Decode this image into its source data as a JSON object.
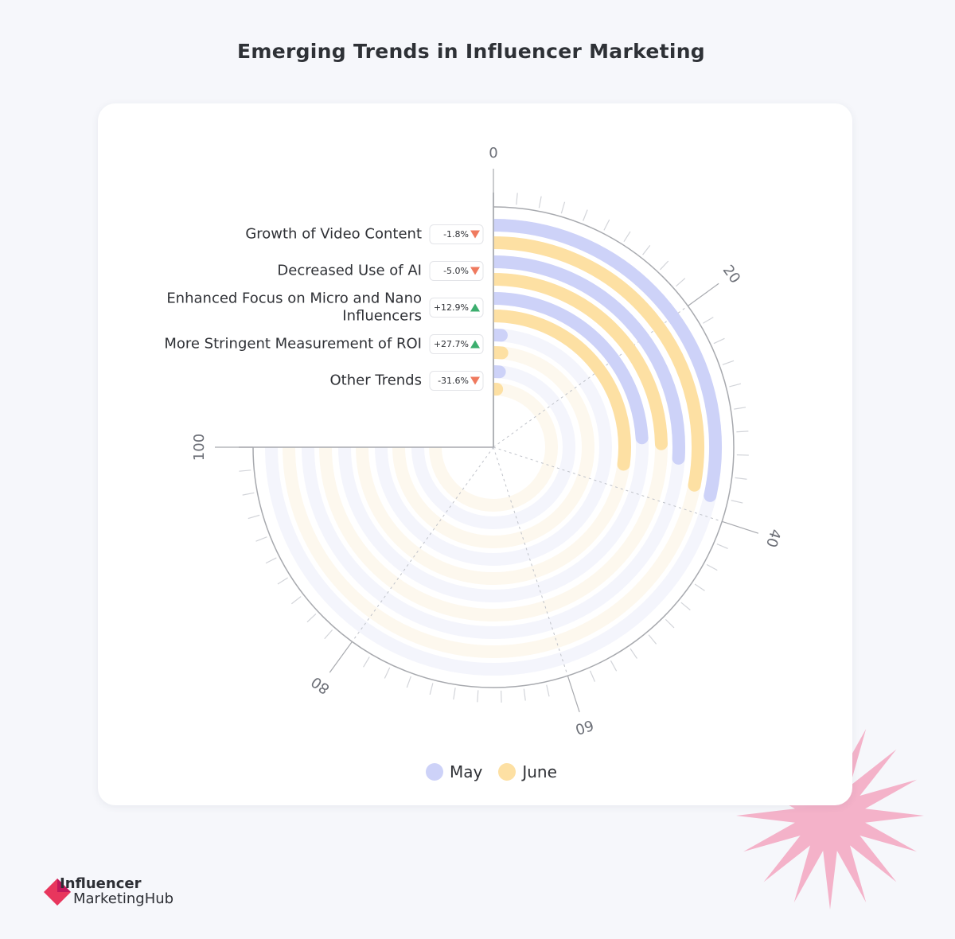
{
  "title": "Emerging Trends in Influencer Marketing",
  "colors": {
    "may": "#cdd2f8",
    "june": "#fde0a3",
    "may_track": "#f4f5fc",
    "june_track": "#fdf8ee",
    "up": "#3cae6e",
    "down": "#ef7a5f"
  },
  "chart_data": {
    "type": "bar",
    "subtype": "radial-bar",
    "title": "Emerging Trends in Influencer Marketing",
    "categories": [
      "Growth of Video Content",
      "Decreased Use of AI",
      "Enhanced Focus on Micro and Nano Influencers",
      "More Stringent Measurement of ROI",
      "Other Trends"
    ],
    "category_lines": [
      [
        "Growth of Video Content"
      ],
      [
        "Decreased Use of AI"
      ],
      [
        "Enhanced Focus on Micro and Nano",
        "Influencers"
      ],
      [
        "More Stringent Measurement of ROI"
      ],
      [
        "Other Trends"
      ]
    ],
    "series": [
      {
        "name": "May",
        "values": [
          38.0,
          34.6,
          32.0,
          1.5,
          1.7
        ],
        "color": "#cdd2f8"
      },
      {
        "name": "June",
        "values": [
          37.3,
          32.9,
          36.1,
          1.9,
          1.2
        ],
        "color": "#fde0a3"
      }
    ],
    "changes": [
      {
        "text": "-1.8%",
        "dir": "down"
      },
      {
        "text": "-5.0%",
        "dir": "down"
      },
      {
        "text": "+12.9%",
        "dir": "up"
      },
      {
        "text": "+27.7%",
        "dir": "up"
      },
      {
        "text": "-31.6%",
        "dir": "down"
      }
    ],
    "axis": {
      "min": 0,
      "max": 100,
      "ticks": [
        "0",
        "20",
        "40",
        "60",
        "80",
        "100"
      ]
    },
    "legend": [
      "May",
      "June"
    ],
    "legend_position": "bottom"
  },
  "logo": {
    "line1": "Influencer",
    "line2": "MarketingHub"
  }
}
